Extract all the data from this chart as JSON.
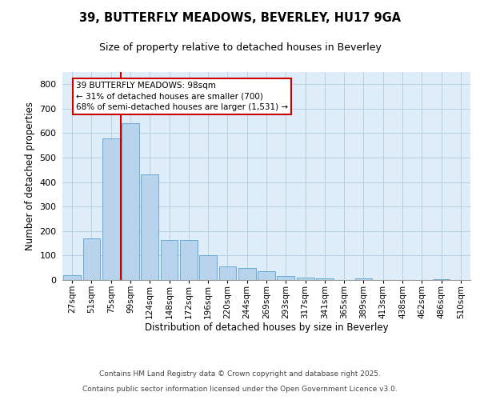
{
  "title_line1": "39, BUTTERFLY MEADOWS, BEVERLEY, HU17 9GA",
  "title_line2": "Size of property relative to detached houses in Beverley",
  "xlabel": "Distribution of detached houses by size in Beverley",
  "ylabel": "Number of detached properties",
  "categories": [
    "27sqm",
    "51sqm",
    "75sqm",
    "99sqm",
    "124sqm",
    "148sqm",
    "172sqm",
    "196sqm",
    "220sqm",
    "244sqm",
    "269sqm",
    "293sqm",
    "317sqm",
    "341sqm",
    "365sqm",
    "389sqm",
    "413sqm",
    "438sqm",
    "462sqm",
    "486sqm",
    "510sqm"
  ],
  "values": [
    20,
    170,
    580,
    640,
    430,
    165,
    165,
    100,
    55,
    50,
    35,
    15,
    10,
    8,
    0,
    5,
    0,
    0,
    0,
    2,
    0
  ],
  "bar_color": "#b8d4ec",
  "bar_edge_color": "#6aaad4",
  "background_color": "#deedf8",
  "vline_color": "#cc0000",
  "vline_index": 3,
  "annotation_text": "39 BUTTERFLY MEADOWS: 98sqm\n← 31% of detached houses are smaller (700)\n68% of semi-detached houses are larger (1,531) →",
  "annotation_box_facecolor": "#ffffff",
  "annotation_box_edgecolor": "#cc0000",
  "ylim": [
    0,
    850
  ],
  "yticks": [
    0,
    100,
    200,
    300,
    400,
    500,
    600,
    700,
    800
  ],
  "footer_line1": "Contains HM Land Registry data © Crown copyright and database right 2025.",
  "footer_line2": "Contains public sector information licensed under the Open Government Licence v3.0."
}
